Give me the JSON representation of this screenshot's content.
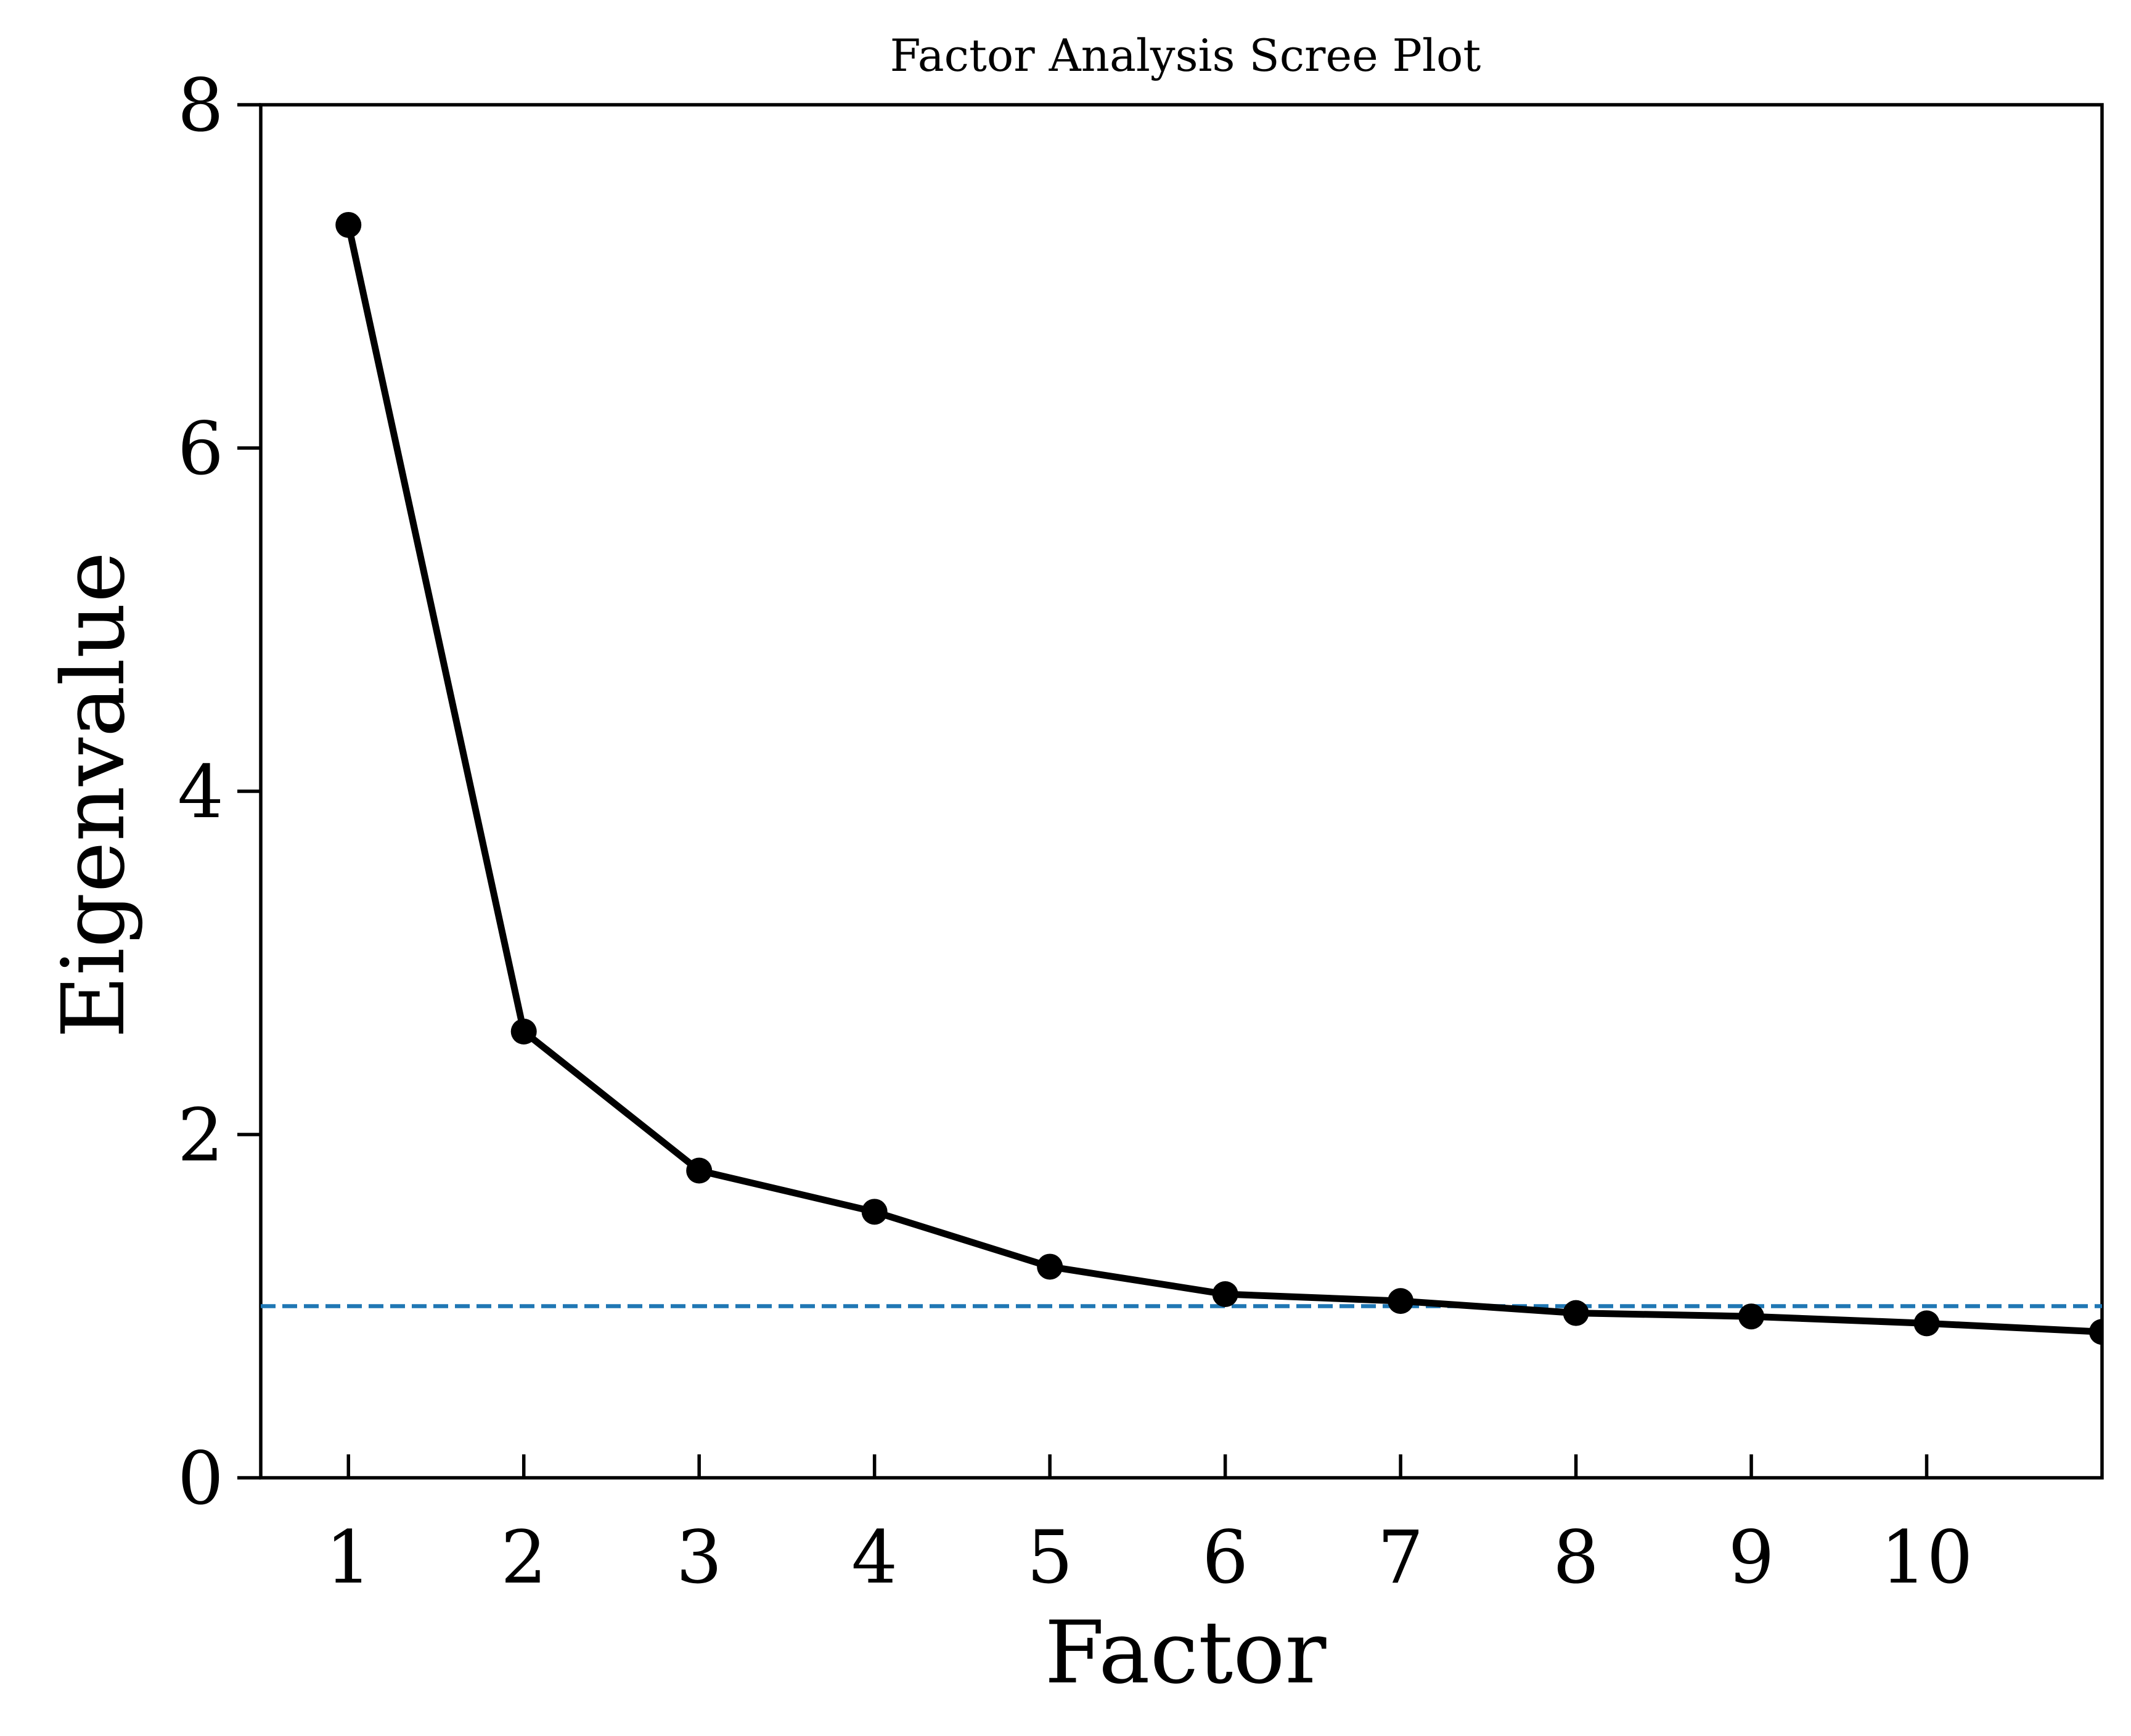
{
  "chart_data": {
    "type": "line",
    "title": "Factor Analysis Scree Plot",
    "xlabel": "Factor",
    "ylabel": "Eigenvalue",
    "x": [
      1,
      2,
      3,
      4,
      5,
      6,
      7,
      8,
      9,
      10,
      11
    ],
    "series": [
      {
        "values": [
          7.3,
          2.6,
          1.79,
          1.55,
          1.23,
          1.07,
          1.03,
          0.96,
          0.94,
          0.9,
          0.85
        ]
      }
    ],
    "reference_line": {
      "y": 1.0,
      "style": "dashed"
    },
    "xlim": [
      0.5,
      11
    ],
    "ylim": [
      0,
      8
    ],
    "xticks": [
      "1",
      "2",
      "3",
      "4",
      "5",
      "6",
      "7",
      "8",
      "9",
      "10"
    ],
    "yticks": [
      "0",
      "2",
      "4",
      "6",
      "8"
    ],
    "grid": false,
    "colors": {
      "series": "#000000",
      "reference": "#1f77b4",
      "axes": "#000000"
    }
  }
}
